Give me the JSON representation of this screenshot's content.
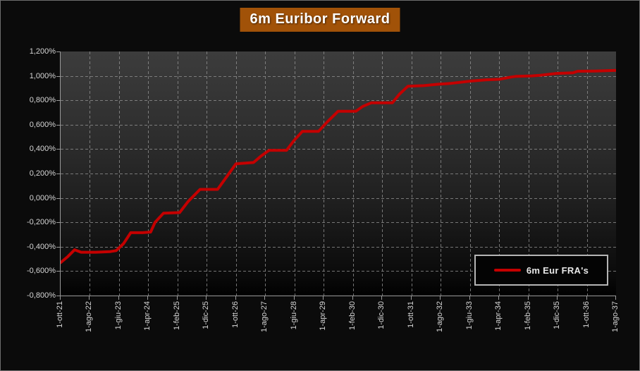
{
  "title": {
    "text": "6m Euribor Forward",
    "bg_color": "#a15208"
  },
  "legend": {
    "label": "6m Eur FRA's",
    "line_color": "#c40000"
  },
  "chart_data": {
    "type": "line",
    "title": "6m Euribor Forward",
    "x_unit": "months since 1-ott-21",
    "xlim": [
      0,
      190
    ],
    "ylim": [
      -0.8,
      1.2
    ],
    "grid": "dashed",
    "legend_position": "bottom-right",
    "y_tick_values": [
      1.2,
      1.0,
      0.8,
      0.6,
      0.4,
      0.2,
      0.0,
      -0.2,
      -0.4,
      -0.6,
      -0.8
    ],
    "y_tick_labels": [
      "1,200%",
      "1,000%",
      "0,800%",
      "0,600%",
      "0,400%",
      "0,200%",
      "0,000%",
      "-0,200%",
      "-0,400%",
      "-0,600%",
      "-0,800%"
    ],
    "x_tick_months": [
      0,
      10,
      20,
      30,
      40,
      50,
      60,
      70,
      80,
      90,
      100,
      110,
      120,
      130,
      140,
      150,
      160,
      170,
      180,
      190
    ],
    "x_tick_labels": [
      "1-ott-21",
      "1-ago-22",
      "1-giu-23",
      "1-apr-24",
      "1-feb-25",
      "1-dic-25",
      "1-ott-26",
      "1-ago-27",
      "1-giu-28",
      "1-apr-29",
      "1-feb-30",
      "1-dic-30",
      "1-ott-31",
      "1-ago-32",
      "1-giu-33",
      "1-apr-34",
      "1-feb-35",
      "1-dic-35",
      "1-ott-36",
      "1-ago-37"
    ],
    "series": [
      {
        "name": "6m Eur FRA's",
        "color": "#c40000",
        "points": [
          [
            0,
            -0.53
          ],
          [
            2.5,
            -0.48
          ],
          [
            4.8,
            -0.425
          ],
          [
            7,
            -0.445
          ],
          [
            12,
            -0.445
          ],
          [
            17,
            -0.44
          ],
          [
            19,
            -0.432
          ],
          [
            21.5,
            -0.375
          ],
          [
            24,
            -0.285
          ],
          [
            28,
            -0.285
          ],
          [
            30.8,
            -0.28
          ],
          [
            32.3,
            -0.2
          ],
          [
            35.2,
            -0.125
          ],
          [
            40.7,
            -0.12
          ],
          [
            43.6,
            -0.03
          ],
          [
            47.7,
            0.07
          ],
          [
            53.7,
            0.07
          ],
          [
            56.4,
            0.16
          ],
          [
            60,
            0.28
          ],
          [
            66,
            0.29
          ],
          [
            68.4,
            0.34
          ],
          [
            71.3,
            0.39
          ],
          [
            77.3,
            0.39
          ],
          [
            79.8,
            0.47
          ],
          [
            82.7,
            0.545
          ],
          [
            88.2,
            0.545
          ],
          [
            91.1,
            0.62
          ],
          [
            94.9,
            0.71
          ],
          [
            101,
            0.71
          ],
          [
            103.4,
            0.75
          ],
          [
            106.3,
            0.78
          ],
          [
            113.5,
            0.78
          ],
          [
            115.9,
            0.85
          ],
          [
            118.8,
            0.915
          ],
          [
            124.3,
            0.92
          ],
          [
            129.2,
            0.932
          ],
          [
            133.3,
            0.938
          ],
          [
            140.2,
            0.957
          ],
          [
            145.3,
            0.967
          ],
          [
            150.1,
            0.972
          ],
          [
            154,
            0.99
          ],
          [
            155.7,
            0.996
          ],
          [
            161.2,
            1.0
          ],
          [
            164.1,
            1.005
          ],
          [
            169.6,
            1.02
          ],
          [
            175.2,
            1.025
          ],
          [
            176.9,
            1.038
          ],
          [
            183,
            1.04
          ],
          [
            190,
            1.045
          ]
        ]
      }
    ]
  }
}
